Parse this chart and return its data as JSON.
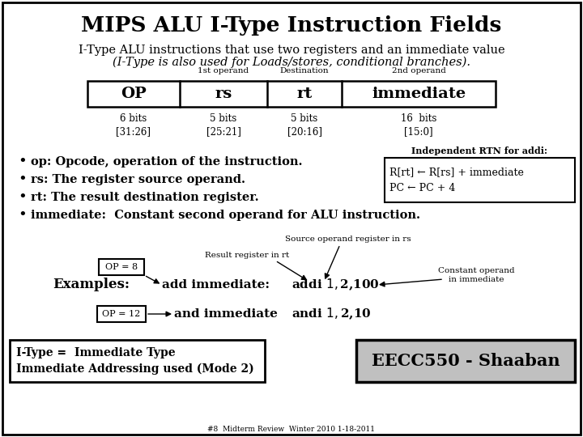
{
  "title": "MIPS ALU I-Type Instruction Fields",
  "subtitle1": "I-Type ALU instructions that use two registers and an immediate value",
  "subtitle2": "(I-Type is also used for Loads/stores, conditional branches).",
  "table_fields": [
    "OP",
    "rs",
    "rt",
    "immediate"
  ],
  "bits_labels": [
    "6 bits\n[31:26]",
    "5 bits\n[25:21]",
    "5 bits\n[20:16]",
    "16  bits\n[15:0]"
  ],
  "bullets": [
    "op: Opcode, operation of the instruction.",
    "rs: The register source operand.",
    "rt: The result destination register.",
    "immediate:  Constant second operand for ALU instruction."
  ],
  "rtn_title": "Independent RTN for addi:",
  "rtn_lines": [
    "R[rt] ← R[rs] + immediate",
    "PC ← PC + 4"
  ],
  "example_label": "Examples:",
  "ex1_op": "OP = 8",
  "ex1_name": "add immediate:",
  "ex1_code": "addi $1,$2,100",
  "ex2_op": "OP = 12",
  "ex2_name": "and immediate",
  "ex2_code": "andi $1,$2,10",
  "ann1": "Result register in rt",
  "ann2": "Source operand register in rs",
  "ann3": "Constant operand\nin immediate",
  "footer1": "I-Type =  Immediate Type",
  "footer2": "Immediate Addressing used (Mode 2)",
  "brand": "EECC550 - Shaaban",
  "footnote": "#8  Midterm Review  Winter 2010 1-18-2011",
  "bg_color": "#ffffff",
  "text_color": "#000000"
}
